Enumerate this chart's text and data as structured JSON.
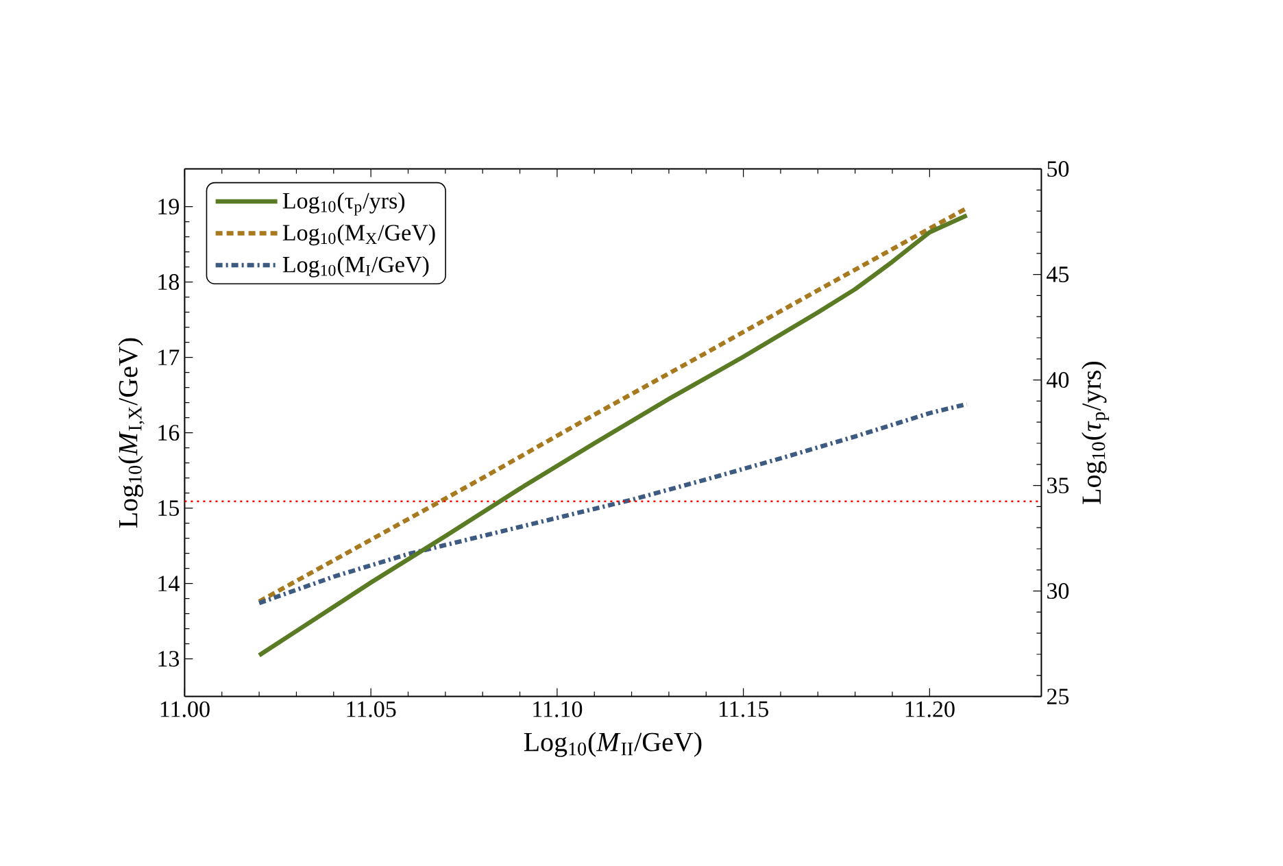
{
  "chart_data": {
    "type": "line",
    "xlabel": "Log$_{10}$(*M*$_{II}$/GeV)",
    "ylabel": "Log$_{10}$(*M*$_{I,X}$/GeV)",
    "y2label": "Log$_{10}$(*τ*$_{p}$/yrs)",
    "xlim": [
      11.0,
      11.23
    ],
    "xticks": [
      {
        "value": 11.0,
        "label": "11.00"
      },
      {
        "value": 11.05,
        "label": "11.05"
      },
      {
        "value": 11.1,
        "label": "11.10"
      },
      {
        "value": 11.15,
        "label": "11.15"
      },
      {
        "value": 11.2,
        "label": "11.20"
      }
    ],
    "ylim": [
      12.5,
      19.5
    ],
    "yticks": [
      13,
      14,
      15,
      16,
      17,
      18,
      19
    ],
    "y2lim": [
      25,
      50
    ],
    "y2ticks": [
      25,
      30,
      35,
      40,
      45,
      50
    ],
    "legend": "top left",
    "grid": false,
    "series": [
      {
        "name": "Log$_{10}$(τ$_{p}$/yrs)",
        "color": "#5b7a24",
        "line_style": "solid",
        "axis": "y2",
        "x": [
          11.02,
          11.03,
          11.05,
          11.07,
          11.09,
          11.11,
          11.13,
          11.15,
          11.17,
          11.18,
          11.19,
          11.2,
          11.21
        ],
        "values": [
          26.95,
          28.1,
          30.4,
          32.6,
          34.85,
          37.0,
          39.1,
          41.1,
          43.2,
          44.3,
          45.6,
          47.0,
          47.8
        ]
      },
      {
        "name": "Log$_{10}$(M$_{X}$/GeV)",
        "color": "#a87a20",
        "line_style": "dashed",
        "x": [
          11.02,
          11.05,
          11.08,
          11.11,
          11.14,
          11.17,
          11.2,
          11.21
        ],
        "values": [
          13.76,
          14.58,
          15.4,
          16.24,
          17.06,
          17.89,
          18.71,
          18.98
        ]
      },
      {
        "name": "Log$_{10}$(M$_{I}$/GeV)",
        "color": "#3d5a80",
        "line_style": "dashdot",
        "x": [
          11.02,
          11.04,
          11.06,
          11.08,
          11.1,
          11.12,
          11.14,
          11.16,
          11.18,
          11.2,
          11.21
        ],
        "values": [
          13.74,
          14.09,
          14.39,
          14.63,
          14.87,
          15.11,
          15.38,
          15.66,
          15.95,
          16.26,
          16.38
        ]
      }
    ],
    "ref_lines": [
      {
        "axis": "y",
        "value": 15.09,
        "color": "#ff0000",
        "line_style": "dotted"
      }
    ]
  }
}
